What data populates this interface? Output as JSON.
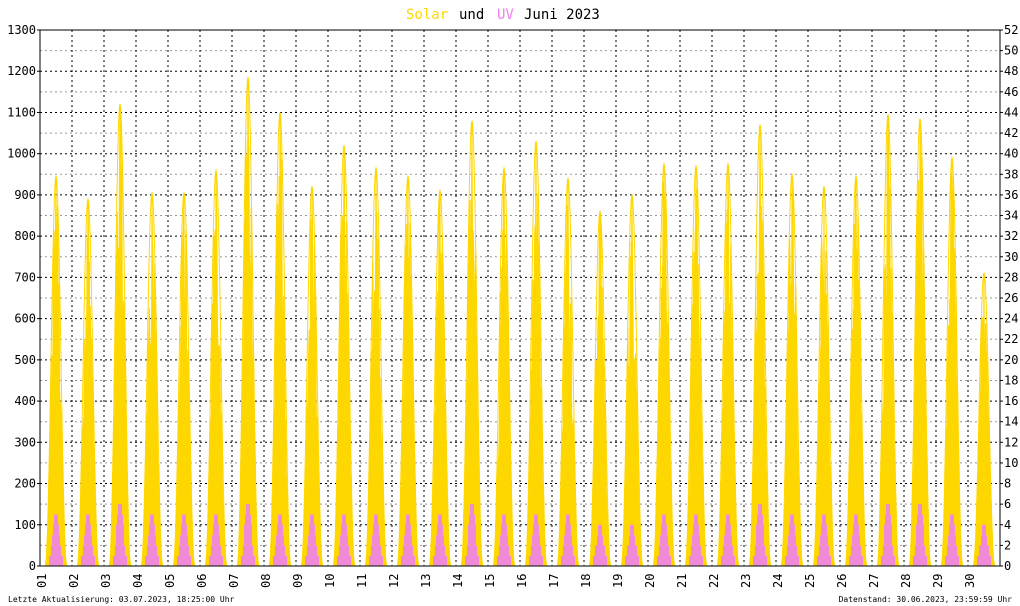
{
  "title": {
    "word_solar": "Solar",
    "word_und": "und",
    "word_uv": "UV",
    "word_period": "Juni 2023"
  },
  "footer": {
    "left": "Letzte Aktualisierung: 03.07.2023, 18:25:00 Uhr",
    "right": "Datenstand: 30.06.2023, 23:59:59 Uhr"
  },
  "colors": {
    "solar": "#ffd700",
    "uv": "#ee82ee",
    "title_solar": "#ffd700",
    "title_uv": "#ee82ee",
    "grid_major": "#000000",
    "grid_minor": "#999999",
    "frame": "#000000",
    "background": "#ffffff"
  },
  "chart_data": {
    "type": "area",
    "x_labels": [
      "01",
      "02",
      "03",
      "04",
      "05",
      "06",
      "07",
      "08",
      "09",
      "10",
      "11",
      "12",
      "13",
      "14",
      "15",
      "16",
      "17",
      "18",
      "19",
      "20",
      "21",
      "22",
      "23",
      "24",
      "25",
      "26",
      "27",
      "28",
      "29",
      "30"
    ],
    "y_left": {
      "min": 0,
      "max": 1300,
      "ticks": [
        0,
        100,
        200,
        300,
        400,
        500,
        600,
        700,
        800,
        900,
        1000,
        1100,
        1200,
        1300
      ]
    },
    "y_right": {
      "min": 0,
      "max": 52,
      "ticks": [
        0,
        2,
        4,
        6,
        8,
        10,
        12,
        14,
        16,
        18,
        20,
        22,
        24,
        26,
        28,
        30,
        32,
        34,
        36,
        38,
        40,
        42,
        44,
        46,
        48,
        50,
        52
      ]
    },
    "grid": true,
    "series": [
      {
        "name": "Solar",
        "axis": "left",
        "daily_peak": [
          945,
          890,
          1120,
          905,
          905,
          960,
          1185,
          1100,
          920,
          1020,
          965,
          945,
          910,
          1080,
          965,
          1030,
          940,
          860,
          900,
          975,
          970,
          975,
          1070,
          950,
          920,
          945,
          1095,
          1085,
          990,
          710
        ]
      },
      {
        "name": "UV",
        "axis": "right",
        "daily_peak": [
          5,
          5,
          6,
          5,
          5,
          5,
          6,
          5,
          5,
          5,
          5,
          5,
          5,
          6,
          5,
          5,
          5,
          4,
          4,
          5,
          5,
          5,
          6,
          5,
          5,
          5,
          6,
          6,
          5,
          4
        ]
      }
    ]
  }
}
